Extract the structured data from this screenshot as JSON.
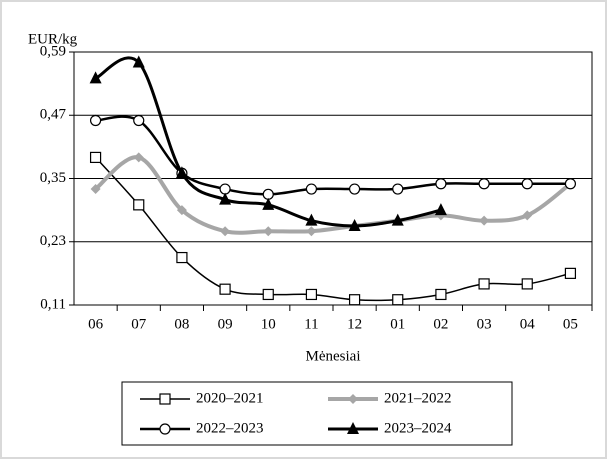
{
  "chart_data": {
    "type": "line",
    "y_label": "EUR/kg",
    "x_label": "Mėnesiai",
    "categories": [
      "06",
      "07",
      "08",
      "09",
      "10",
      "11",
      "12",
      "01",
      "02",
      "03",
      "04",
      "05"
    ],
    "ylim": [
      0.11,
      0.59
    ],
    "yticks": [
      {
        "value": 0.11,
        "label": "0,11"
      },
      {
        "value": 0.23,
        "label": "0,23"
      },
      {
        "value": 0.35,
        "label": "0,35"
      },
      {
        "value": 0.47,
        "label": "0,47"
      },
      {
        "value": 0.59,
        "label": "0,59"
      }
    ],
    "grid": true,
    "legend": "bottom",
    "series": [
      {
        "name": "2020–2021",
        "color": "#000000",
        "marker": "square",
        "values": [
          0.39,
          0.3,
          0.2,
          0.14,
          0.13,
          0.13,
          0.12,
          0.12,
          0.13,
          0.15,
          0.15,
          0.17
        ]
      },
      {
        "name": "2021–2022",
        "color": "#a6a6a6",
        "marker": "diamond",
        "values": [
          0.33,
          0.39,
          0.29,
          0.25,
          0.25,
          0.25,
          0.26,
          0.27,
          0.28,
          0.27,
          0.28,
          0.34
        ]
      },
      {
        "name": "2022–2023",
        "color": "#000000",
        "marker": "circle",
        "values": [
          0.46,
          0.46,
          0.36,
          0.33,
          0.32,
          0.33,
          0.33,
          0.33,
          0.34,
          0.34,
          0.34,
          0.34
        ]
      },
      {
        "name": "2023–2024",
        "color": "#000000",
        "marker": "triangle",
        "values": [
          0.54,
          0.57,
          0.36,
          0.31,
          0.3,
          0.27,
          0.26,
          0.27,
          0.29,
          null,
          null,
          null
        ]
      }
    ]
  }
}
